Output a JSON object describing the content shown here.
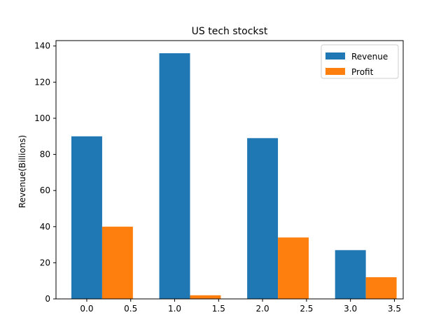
{
  "chart_data": {
    "type": "bar",
    "title": "US tech stockst",
    "xlabel": "",
    "ylabel": "Revenue(Billions)",
    "grid": false,
    "legend_position": "top-right",
    "x_ticks": [
      "0.0",
      "0.5",
      "1.0",
      "1.5",
      "2.0",
      "2.5",
      "3.0",
      "3.5"
    ],
    "y_ticks": [
      "0",
      "20",
      "40",
      "60",
      "80",
      "100",
      "120",
      "140"
    ],
    "xlim": [
      -0.35,
      3.6
    ],
    "ylim": [
      0,
      143
    ],
    "x": [
      0,
      1,
      2,
      3
    ],
    "bar_width": 0.35,
    "series": [
      {
        "name": "Revenue",
        "color": "#1f77b4",
        "offset": 0,
        "values": [
          90,
          136,
          89,
          27
        ]
      },
      {
        "name": "Profit",
        "color": "#ff7f0e",
        "offset": 0.35,
        "values": [
          40,
          2,
          34,
          12
        ]
      }
    ]
  }
}
